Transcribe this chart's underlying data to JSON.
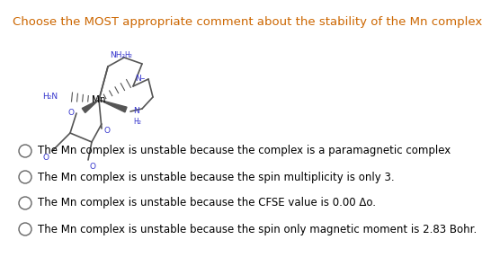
{
  "title": "Choose the MOST appropriate comment about the stability of the Mn complex",
  "title_color": "#cc6600",
  "title_fontsize": 9.5,
  "options": [
    "The Mn complex is unstable because the complex is a paramagnetic complex",
    "The Mn complex is unstable because the spin multiplicity is only 3.",
    "The Mn complex is unstable because the CFSE value is 0.00 Δo.",
    "The Mn complex is unstable because the spin only magnetic moment is 2.83 Bohr."
  ],
  "option_color": "#000000",
  "option_fontsize": 8.5,
  "bg_color": "#ffffff",
  "circle_color": "#666666",
  "label_colors": {
    "NH2": "#3333cc",
    "H2": "#3333cc",
    "H2N": "#3333cc",
    "N": "#3333cc",
    "O": "#3333cc",
    "Mn": "#000000",
    "bond": "#555555"
  }
}
